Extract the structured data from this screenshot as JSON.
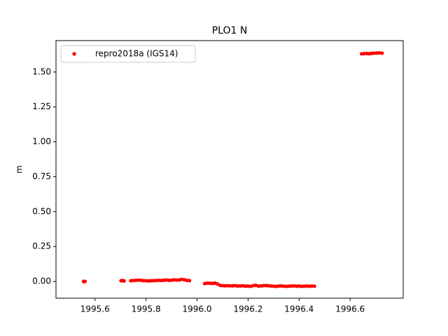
{
  "chart_data": {
    "type": "scatter",
    "title": "PLO1 N",
    "y_label": "m",
    "x": [
      1995.555,
      1995.558,
      1995.561,
      1995.702,
      1995.706,
      1995.71,
      1995.714,
      1995.74,
      1995.75,
      1995.76,
      1995.77,
      1995.78,
      1995.79,
      1995.8,
      1995.81,
      1995.82,
      1995.83,
      1995.84,
      1995.85,
      1995.86,
      1995.87,
      1995.88,
      1995.89,
      1995.9,
      1995.91,
      1995.92,
      1995.93,
      1995.94,
      1995.95,
      1995.96,
      1995.97,
      1996.03,
      1996.04,
      1996.05,
      1996.06,
      1996.07,
      1996.08,
      1996.09,
      1996.1,
      1996.11,
      1996.12,
      1996.13,
      1996.14,
      1996.15,
      1996.16,
      1996.17,
      1996.18,
      1996.19,
      1996.2,
      1996.21,
      1996.22,
      1996.23,
      1996.24,
      1996.25,
      1996.26,
      1996.27,
      1996.28,
      1996.29,
      1996.3,
      1996.31,
      1996.32,
      1996.33,
      1996.34,
      1996.35,
      1996.36,
      1996.37,
      1996.38,
      1996.39,
      1996.4,
      1996.41,
      1996.42,
      1996.43,
      1996.44,
      1996.45,
      1996.46,
      1996.645,
      1996.655,
      1996.665,
      1996.675,
      1996.685,
      1996.695,
      1996.705,
      1996.715,
      1996.725
    ],
    "series": [
      {
        "name": "repro2018a (IGS14)",
        "color": "#ff0000",
        "values": [
          0.0,
          0.0,
          0.0,
          0.005,
          0.006,
          0.005,
          0.004,
          0.005,
          0.007,
          0.008,
          0.01,
          0.008,
          0.006,
          0.005,
          0.004,
          0.005,
          0.006,
          0.007,
          0.008,
          0.007,
          0.009,
          0.01,
          0.008,
          0.009,
          0.012,
          0.01,
          0.011,
          0.015,
          0.012,
          0.008,
          0.006,
          -0.015,
          -0.012,
          -0.013,
          -0.014,
          -0.012,
          -0.018,
          -0.028,
          -0.03,
          -0.031,
          -0.03,
          -0.032,
          -0.031,
          -0.03,
          -0.033,
          -0.032,
          -0.031,
          -0.034,
          -0.033,
          -0.035,
          -0.03,
          -0.028,
          -0.033,
          -0.032,
          -0.03,
          -0.029,
          -0.031,
          -0.033,
          -0.034,
          -0.035,
          -0.033,
          -0.032,
          -0.034,
          -0.035,
          -0.034,
          -0.033,
          -0.032,
          -0.034,
          -0.033,
          -0.035,
          -0.034,
          -0.033,
          -0.034,
          -0.033,
          -0.034,
          1.63,
          1.632,
          1.633,
          1.631,
          1.634,
          1.635,
          1.636,
          1.637,
          1.635
        ]
      }
    ],
    "xlim": [
      1995.447,
      1996.808
    ],
    "xticks": [
      1995.6,
      1995.8,
      {
        "value": 1996,
        "label": "1996.0"
      },
      1996.2,
      1996.4,
      1996.6
    ],
    "ylim": [
      -0.12,
      1.725
    ],
    "yticks": [
      {
        "value": 0,
        "label": "0.00"
      },
      {
        "value": 0.25,
        "label": "0.25"
      },
      {
        "value": 0.5,
        "label": "0.50"
      },
      {
        "value": 0.75,
        "label": "0.75"
      },
      {
        "value": 1,
        "label": "1.00"
      },
      {
        "value": 1.25,
        "label": "1.25"
      },
      {
        "value": 1.5,
        "label": "1.50"
      }
    ],
    "legend": "upper left"
  }
}
